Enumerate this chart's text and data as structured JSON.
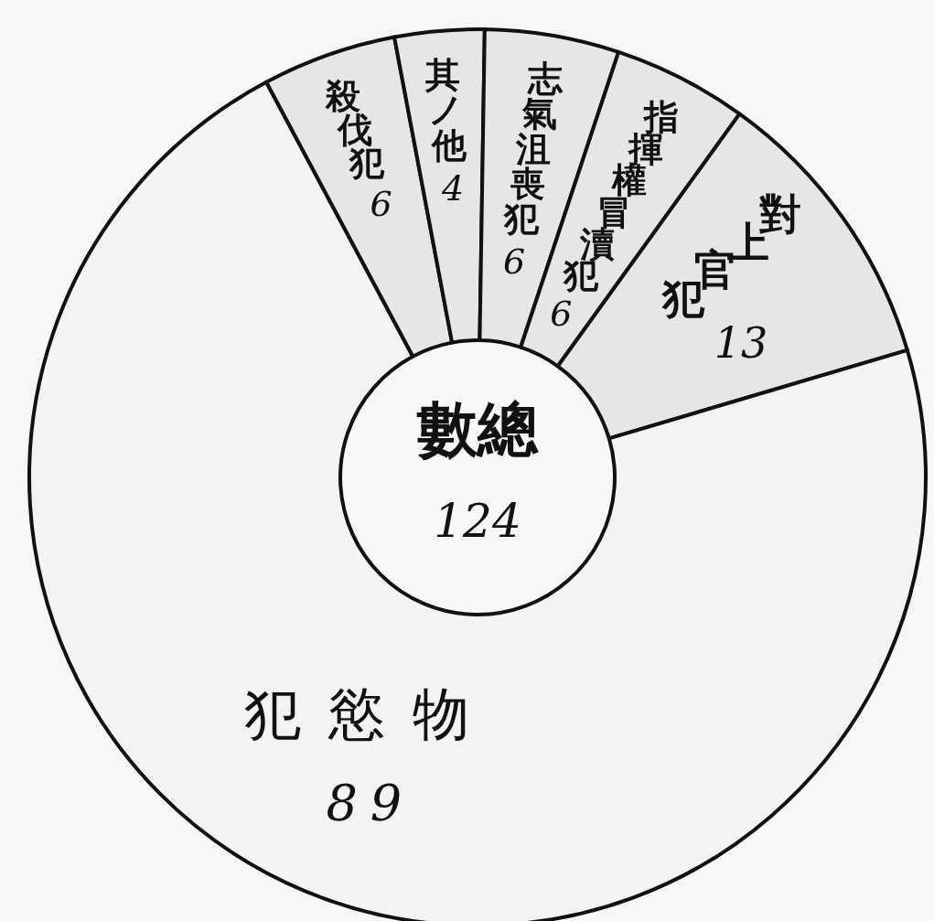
{
  "chart_data": {
    "type": "donut",
    "categories": [
      "對上官犯",
      "犯慾物",
      "殺伐犯",
      "其ノ他",
      "志氣沮喪犯",
      "指揮權冒瀆犯"
    ],
    "values": [
      13,
      89,
      6,
      4,
      6,
      6
    ],
    "colors": [
      "#e6e6e6",
      "#f3f3f3",
      "#e6e6e6",
      "#e6e6e6",
      "#e6e6e6",
      "#e6e6e6"
    ],
    "data_labels": true,
    "annotations": [
      "數總",
      "124"
    ]
  }
}
